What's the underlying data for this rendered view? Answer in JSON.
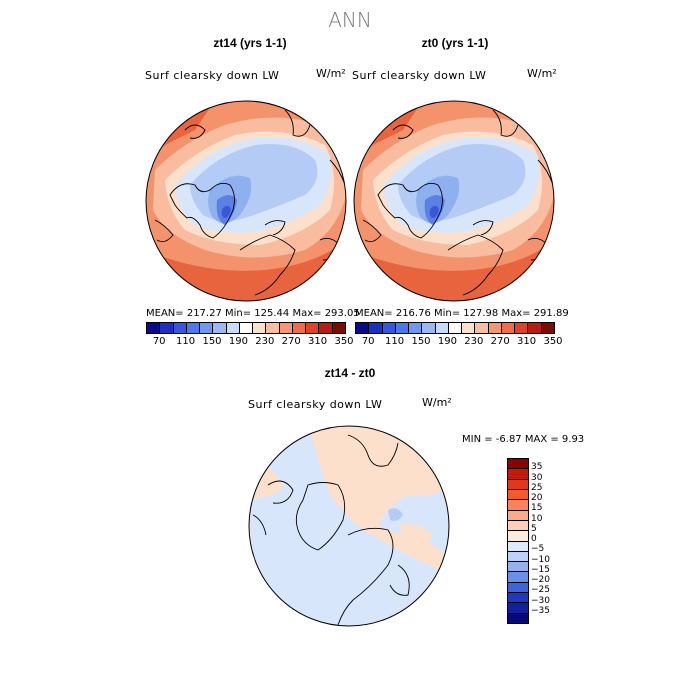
{
  "figure": {
    "title": "ANN"
  },
  "panels": [
    {
      "title": "zt14 (yrs 1-1)",
      "variable": "Surf clearsky down LW",
      "units": "W/m²",
      "stats": "MEAN= 217.27   Min= 125.44   Max= 293.05"
    },
    {
      "title": "zt0 (yrs 1-1)",
      "variable": "Surf clearsky down LW",
      "units": "W/m²",
      "stats": "MEAN= 216.76   Min= 127.98   Max= 291.89"
    },
    {
      "title": "zt14 - zt0",
      "variable": "Surf clearsky down LW",
      "units": "W/m²",
      "stats": "MIN =   -6.87  MAX =    9.93"
    }
  ],
  "colorbar_main": {
    "colors": [
      "#0a0a8c",
      "#1c31c4",
      "#3256e0",
      "#4c78ee",
      "#6e98f2",
      "#9bbaf5",
      "#c7dbfa",
      "#ffffff",
      "#fde0cc",
      "#fbbd9c",
      "#f8976e",
      "#f36b44",
      "#e14124",
      "#b81c0e",
      "#7d0a05"
    ],
    "tick_labels": [
      "70",
      "110",
      "150",
      "190",
      "230",
      "270",
      "310",
      "350"
    ]
  },
  "colorbar_diff": {
    "colors": [
      "#8b0000",
      "#c41a0a",
      "#e0391a",
      "#f25a2c",
      "#f8835a",
      "#fbab88",
      "#fdd0b6",
      "#fdebdc",
      "#dceafb",
      "#bcd3f6",
      "#93b2f0",
      "#6a8fe8",
      "#3f63dc",
      "#2038c4",
      "#10209e",
      "#050a78"
    ],
    "tick_labels": [
      "35",
      "30",
      "25",
      "20",
      "15",
      "10",
      "5",
      "0",
      "−5",
      "−10",
      "−15",
      "−20",
      "−25",
      "−30",
      "−35"
    ]
  },
  "map_colors": {
    "warm_dark": "#e8643e",
    "warm_mid": "#f4926c",
    "warm_light": "#f9bc9e",
    "warm_pale": "#fde0cc",
    "cool_pale": "#d8e6fb",
    "cool_light": "#b4ccf5",
    "cool_mid": "#8fb0ef",
    "cool_dark": "#5a80e4",
    "cool_deep": "#3558d6"
  }
}
